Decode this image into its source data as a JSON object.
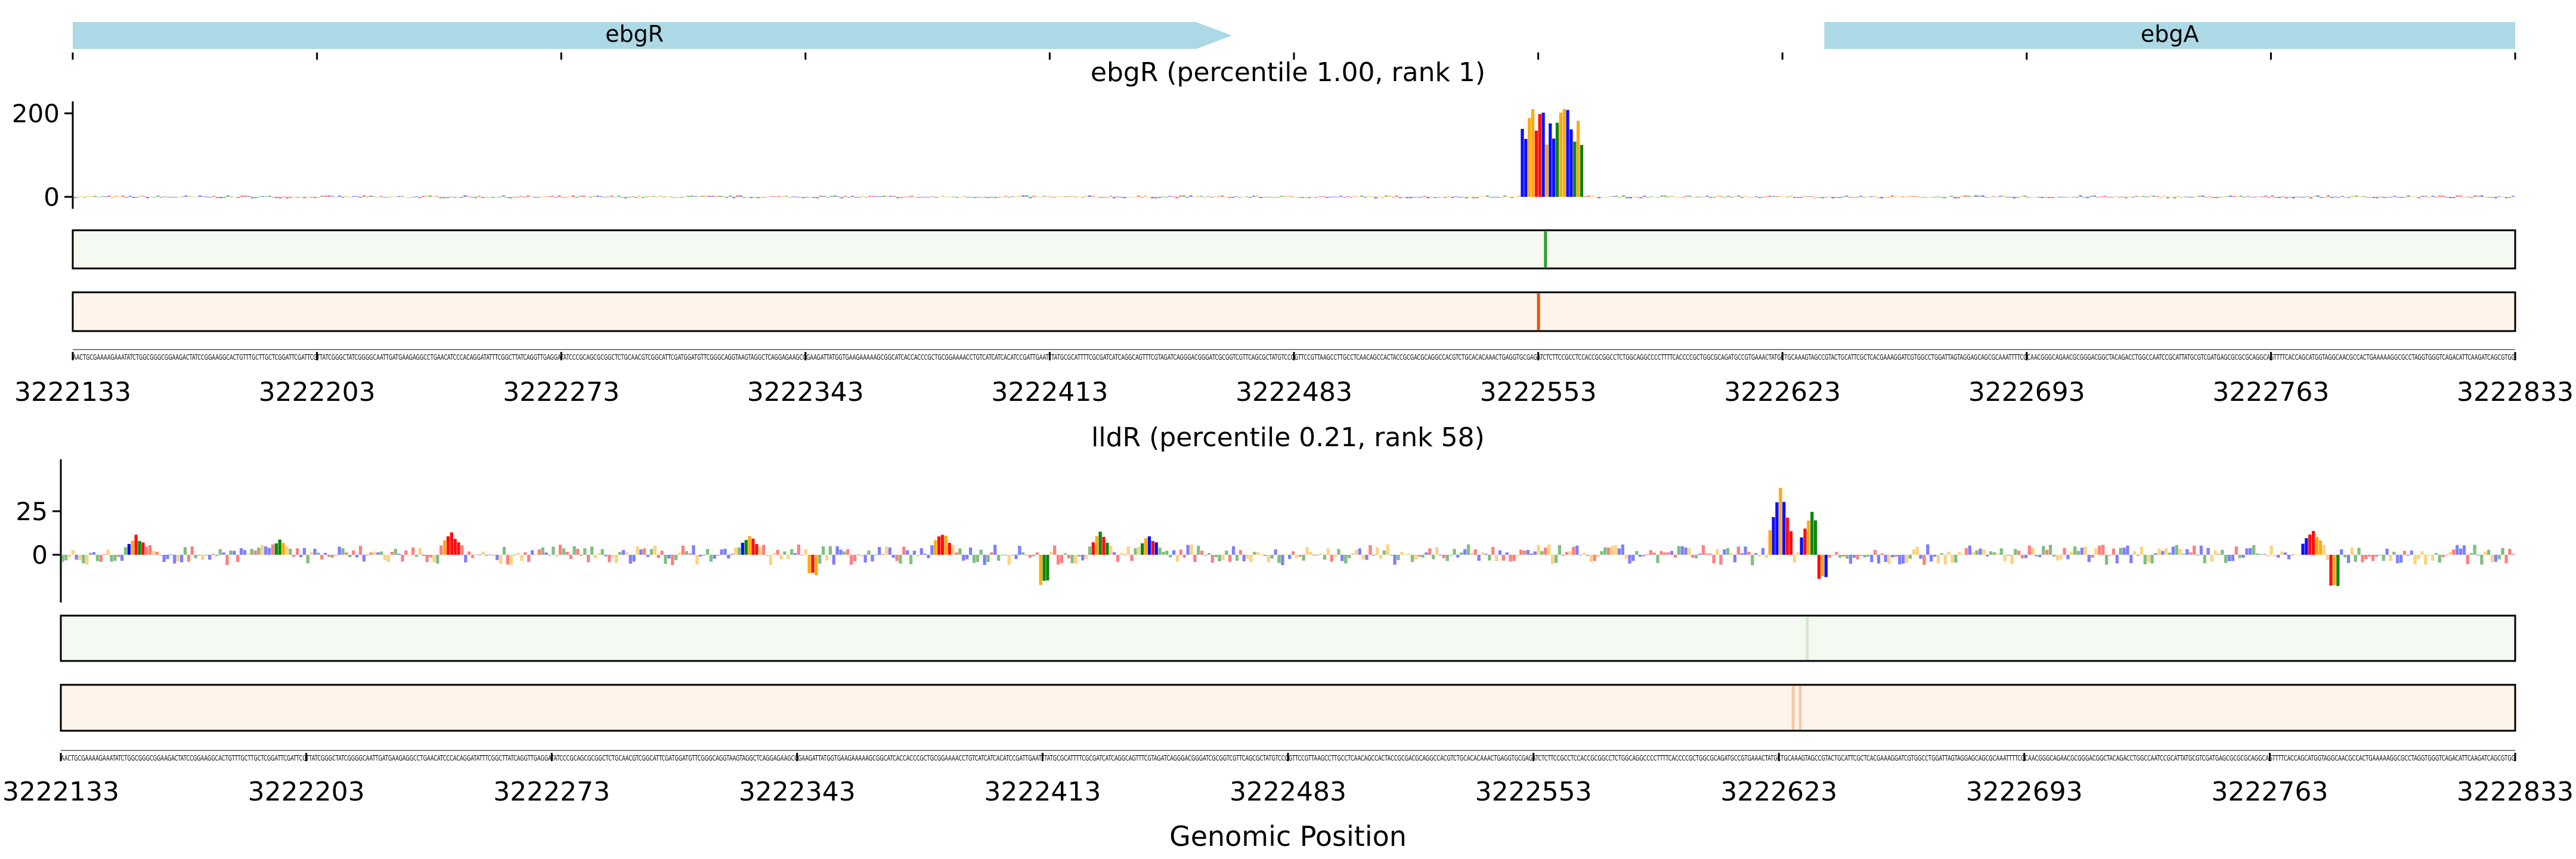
{
  "chart_data": {
    "type": "sequence-logo-track",
    "xlabel": "Genomic Position",
    "x_range": [
      3222133,
      3222833
    ],
    "x_ticks": [
      3222133,
      3222203,
      3222273,
      3222343,
      3222413,
      3222483,
      3222553,
      3222623,
      3222693,
      3222763,
      3222833
    ],
    "x_tick_labels": [
      "3222133",
      "3222203",
      "3222273",
      "3222343",
      "3222413",
      "3222483",
      "3222553",
      "3222623",
      "3222693",
      "3222763",
      "3222833"
    ],
    "gene_track": {
      "genes": [
        {
          "name": "ebgR",
          "start": 3222133,
          "end": 3222455,
          "strand": "+"
        },
        {
          "name": "ebgA",
          "start": 3222635,
          "end": 3222833,
          "strand": "+"
        }
      ],
      "color": "#add8e6"
    },
    "base_colors": {
      "A": "#008000",
      "C": "#0000ff",
      "G": "#ffa500",
      "T": "#ff0000"
    },
    "panels": [
      {
        "title": "ebgR (percentile 1.00, rank 1)",
        "y_ticks": [
          0,
          200
        ],
        "ylim": [
          -30,
          230
        ],
        "peak_region": [
          3222548,
          3222565
        ],
        "peak_max": 225,
        "background_amplitude": 4,
        "heat_track_1": {
          "color": "#f4faf1",
          "line_color": "#2ca02c",
          "hotspots": [
            3222555
          ]
        },
        "heat_track_2": {
          "color": "#fff4ea",
          "line_color": "#e6550d",
          "hotspots": [
            3222553
          ]
        }
      },
      {
        "title": "lldR (percentile 0.21, rank 58)",
        "y_ticks": [
          0,
          25
        ],
        "ylim": [
          -20,
          45
        ],
        "peaks": [
          {
            "position": 3222154,
            "value": 12
          },
          {
            "position": 3222195,
            "value": 10
          },
          {
            "position": 3222244,
            "value": 14
          },
          {
            "position": 3222329,
            "value": 12
          },
          {
            "position": 3222384,
            "value": 14
          },
          {
            "position": 3222429,
            "value": 14
          },
          {
            "position": 3222443,
            "value": 12
          },
          {
            "position": 3222623,
            "value": 42
          },
          {
            "position": 3222632,
            "value": 28
          },
          {
            "position": 3222775,
            "value": 16
          }
        ],
        "dips": [
          {
            "position": 3222413,
            "value": -18
          },
          {
            "position": 3222347,
            "value": -12
          },
          {
            "position": 3222781,
            "value": -18
          },
          {
            "position": 3222635,
            "value": -14
          }
        ],
        "background_amplitude": 6,
        "heat_track_1": {
          "color": "#f4faf1",
          "line_color": "#d4e8cf",
          "hotspots": [
            3222631
          ]
        },
        "heat_track_2": {
          "color": "#fff4ea",
          "line_color": "#f6c8a4",
          "hotspots": [
            3222627,
            3222629
          ]
        }
      }
    ],
    "sequence": "AACTGCGAAAAGAAATATCTGGCGGGCGGAAGACTATCCGGAAGGCACTGTTTGCTTGCTCGGATTCGATTCGTTATCGGGCTATCGGGGCAATTGATGAAGAGGCCTGAACATCCCACAGGATATTTCGGCTTATCAGGTTGAGGATATCCCGCAGCGCGGCTCTGCAACGTCGGCATTCGATGGATGTTCGGGCAGGTAAGTAGGCTCAGGAGAAGCCGAAGATTATGGTGAAGAAAAAGCGGCATCACCACCCGCTGCGGAAAACCTGTCATCATCACATCCGATTGAATTTATGCGCATTTTCGCGATCATCAGGCAGTTTCGTAGATCAGGGACGGGATCGCGGTCGTTCAGCGCTATGTCCGGTTCCGTTAAGCCTTGCCTCAACAGCCACTACCGCGACGCAGGCCACGTCTGCACACAAACTGAGGTGCGAGATCTCTTCCGCCTCCACCGCGGCCTCTGGCAGGCCCCTTTTCACCCCGCTGGCGCAGATGCCGTGAAACTATGCTGCAAAGTAGCCGTACTGCATTCGCTCACGAAAGGATCGTGGCCTGGATTAGTAGGAGCAGCGCAAATTTTCGCAACGGGCAGAACGCGGGACGGCTACAGACCTGGCCAATCCGCATTATGCGTCGATGAGCGCGCGCAGGCAGTTTTCACCAGCATGGTAGGCAACGCCACTGAAAAAGGCGCCTAGGTGGGTCAGACATTCAAGATCAGCGTGG"
  }
}
